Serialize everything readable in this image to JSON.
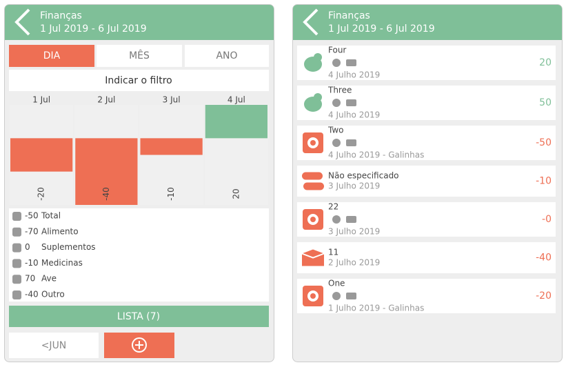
{
  "left": {
    "header": {
      "title": "Finanças",
      "subtitle": "1 Jul 2019 - 6 Jul 2019"
    },
    "tabs": [
      "DIA",
      "MÊS",
      "ANO"
    ],
    "filter": "Indicar o filtro",
    "chart": {
      "type": "bar",
      "categories": [
        "1 Jul",
        "2 Jul",
        "3 Jul",
        "4 Jul"
      ],
      "values": [
        -20,
        -40,
        -10,
        20
      ],
      "ylim": [
        -40,
        20
      ],
      "positive_color": "#7fbf98",
      "negative_color": "#ee6f54"
    },
    "summary": [
      {
        "value": -50,
        "label": "Total"
      },
      {
        "value": -70,
        "label": "Alimento"
      },
      {
        "value": 0,
        "label": "Suplementos"
      },
      {
        "value": -10,
        "label": "Medicinas"
      },
      {
        "value": 70,
        "label": "Ave"
      },
      {
        "value": -40,
        "label": "Outro"
      }
    ],
    "list_button": "LISTA (7)",
    "prev_button": "<JUN"
  },
  "right": {
    "header": {
      "title": "Finanças",
      "subtitle": "1 Jul 2019 - 6 Jul 2019"
    },
    "items": [
      {
        "name": "Four",
        "date": "4 Julho 2019",
        "amount": "20"
      },
      {
        "name": "Three",
        "date": "4 Julho 2019",
        "amount": "50"
      },
      {
        "name": "Two",
        "date": "4 Julho 2019 - Galinhas",
        "amount": "-50"
      },
      {
        "name": "Não especificado",
        "date": "3 Julho 2019",
        "amount": "-10"
      },
      {
        "name": "22",
        "date": "3 Julho 2019",
        "amount": "-0"
      },
      {
        "name": "11",
        "date": "2 Julho 2019",
        "amount": "-40"
      },
      {
        "name": "One",
        "date": "1 Julho 2019 - Galinhas",
        "amount": "-20"
      }
    ]
  }
}
